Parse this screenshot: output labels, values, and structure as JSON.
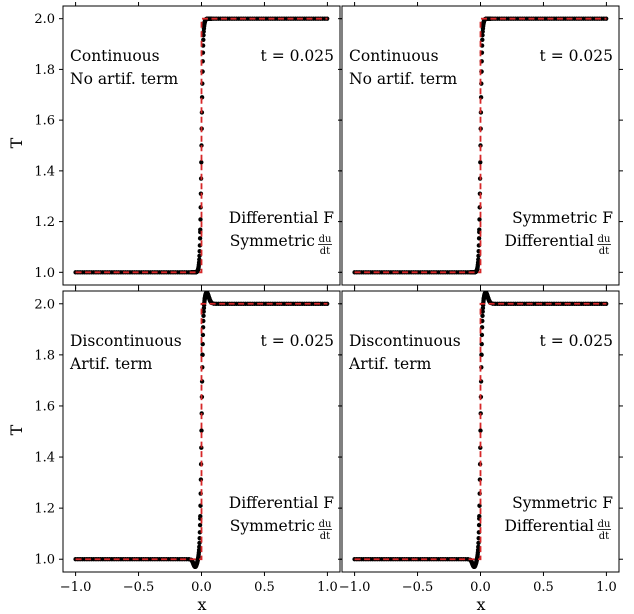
{
  "figure": {
    "ylabel": "T",
    "xlabel": "x",
    "dudt_num": "du",
    "dudt_den": "dt",
    "minus_sign": "−"
  },
  "chart_data": [
    {
      "type": "scatter",
      "panel": "top-left",
      "xlim": [
        -1.1,
        1.1
      ],
      "ylim": [
        0.95,
        2.05
      ],
      "xticks": [
        -1.0,
        -0.5,
        0.0,
        0.5,
        1.0
      ],
      "yticks": [
        1.0,
        1.2,
        1.4,
        1.6,
        1.8,
        2.0
      ],
      "grid": false,
      "annot_left": [
        "Continuous",
        "No artif. term"
      ],
      "annot_time": "t = 0.025",
      "annot_bottom": [
        "Differential F",
        "Symmetric"
      ],
      "overshoot": false,
      "series": [
        {
          "style": "points",
          "color": "#000000",
          "x": [
            -1.0,
            -0.1,
            -0.05,
            -0.03,
            -0.01,
            0.0,
            0.01,
            0.02,
            0.03,
            0.05,
            0.1,
            1.0
          ],
          "y": [
            1.0,
            1.0,
            1.02,
            1.1,
            1.3,
            1.5,
            1.7,
            1.9,
            1.98,
            2.0,
            2.0,
            2.0
          ]
        },
        {
          "style": "dashed-line",
          "color": "#d62728",
          "x": [
            -1.0,
            0.0,
            0.0,
            1.0
          ],
          "y": [
            1.0,
            1.0,
            2.0,
            2.0
          ]
        }
      ]
    },
    {
      "type": "scatter",
      "panel": "top-right",
      "xlim": [
        -1.1,
        1.1
      ],
      "ylim": [
        0.95,
        2.05
      ],
      "xticks": [
        -1.0,
        -0.5,
        0.0,
        0.5,
        1.0
      ],
      "yticks": [
        1.0,
        1.2,
        1.4,
        1.6,
        1.8,
        2.0
      ],
      "grid": false,
      "annot_left": [
        "Continuous",
        "No artif. term"
      ],
      "annot_time": "t = 0.025",
      "annot_bottom": [
        "Symmetric F",
        "Differential"
      ],
      "overshoot": false,
      "series": [
        {
          "style": "points",
          "color": "#000000",
          "x": [
            -1.0,
            -0.1,
            -0.05,
            -0.03,
            -0.01,
            0.0,
            0.01,
            0.02,
            0.03,
            0.05,
            0.1,
            1.0
          ],
          "y": [
            1.0,
            1.0,
            1.02,
            1.1,
            1.3,
            1.5,
            1.7,
            1.9,
            1.98,
            2.0,
            2.0,
            2.0
          ]
        },
        {
          "style": "dashed-line",
          "color": "#d62728",
          "x": [
            -1.0,
            0.0,
            0.0,
            1.0
          ],
          "y": [
            1.0,
            1.0,
            2.0,
            2.0
          ]
        }
      ]
    },
    {
      "type": "scatter",
      "panel": "bottom-left",
      "xlim": [
        -1.1,
        1.1
      ],
      "ylim": [
        0.95,
        2.05
      ],
      "xticks": [
        -1.0,
        -0.5,
        0.0,
        0.5,
        1.0
      ],
      "yticks": [
        1.0,
        1.2,
        1.4,
        1.6,
        1.8,
        2.0
      ],
      "grid": false,
      "annot_left": [
        "Discontinuous",
        "Artif. term"
      ],
      "annot_time": "t = 0.025",
      "annot_bottom": [
        "Differential F",
        "Symmetric"
      ],
      "overshoot": true,
      "series": [
        {
          "style": "points",
          "color": "#000000",
          "x": [
            -1.0,
            -0.12,
            -0.06,
            -0.03,
            -0.01,
            0.0,
            0.01,
            0.02,
            0.03,
            0.05,
            0.1,
            1.0
          ],
          "y": [
            1.0,
            0.99,
            1.03,
            1.12,
            1.35,
            1.5,
            1.72,
            1.93,
            2.02,
            2.01,
            2.0,
            2.0
          ]
        },
        {
          "style": "dashed-line",
          "color": "#d62728",
          "x": [
            -1.0,
            0.0,
            0.0,
            1.0
          ],
          "y": [
            1.0,
            1.0,
            2.0,
            2.0
          ]
        }
      ]
    },
    {
      "type": "scatter",
      "panel": "bottom-right",
      "xlim": [
        -1.1,
        1.1
      ],
      "ylim": [
        0.95,
        2.05
      ],
      "xticks": [
        -1.0,
        -0.5,
        0.0,
        0.5,
        1.0
      ],
      "yticks": [
        1.0,
        1.2,
        1.4,
        1.6,
        1.8,
        2.0
      ],
      "grid": false,
      "annot_left": [
        "Discontinuous",
        "Artif. term"
      ],
      "annot_time": "t = 0.025",
      "annot_bottom": [
        "Symmetric F",
        "Differential"
      ],
      "overshoot": true,
      "series": [
        {
          "style": "points",
          "color": "#000000",
          "x": [
            -1.0,
            -0.12,
            -0.06,
            -0.03,
            -0.01,
            0.0,
            0.01,
            0.02,
            0.03,
            0.05,
            0.1,
            1.0
          ],
          "y": [
            1.0,
            0.99,
            1.03,
            1.12,
            1.35,
            1.5,
            1.72,
            1.93,
            2.02,
            2.01,
            2.0,
            2.0
          ]
        },
        {
          "style": "dashed-line",
          "color": "#d62728",
          "x": [
            -1.0,
            0.0,
            0.0,
            1.0
          ],
          "y": [
            1.0,
            1.0,
            2.0,
            2.0
          ]
        }
      ]
    }
  ]
}
